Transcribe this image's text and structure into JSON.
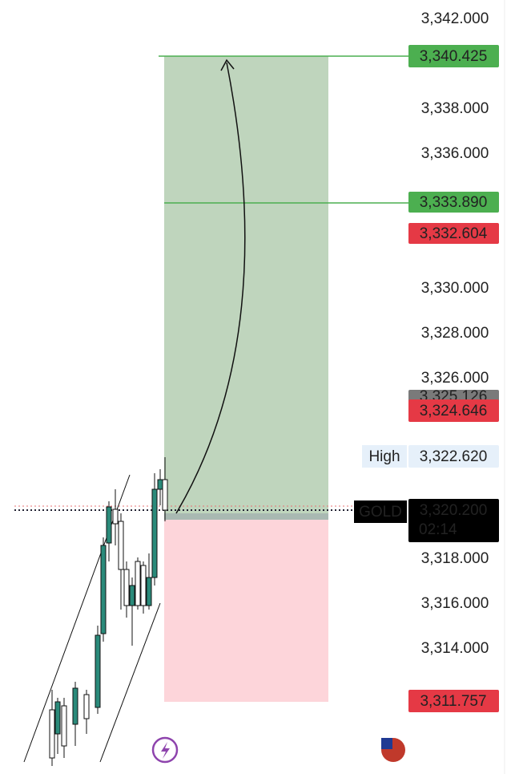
{
  "price_axis": {
    "ticks": [
      "3,342.000",
      "3,338.000",
      "3,336.000",
      "3,330.000",
      "3,328.000",
      "3,326.000",
      "3,318.000",
      "3,316.000",
      "3,314.000"
    ]
  },
  "tags": {
    "target_2": "3,340.425",
    "target_1": "3,333.890",
    "red_upper": "3,332.604",
    "grey_mid": "3,325.126",
    "red_mid": "3,324.646",
    "high_label": "High",
    "high": "3,322.620",
    "symbol": "GOLD",
    "last_price": "3,320.200",
    "countdown": "02:14",
    "stop": "3,311.757"
  }
}
